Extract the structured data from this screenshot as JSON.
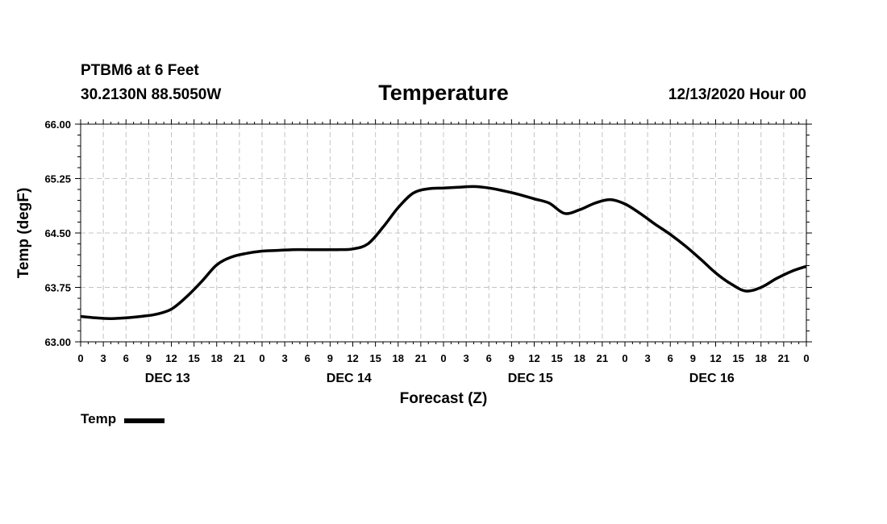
{
  "header": {
    "station": "PTBM6 at 6 Feet",
    "coords": "30.2130N 88.5050W",
    "title": "Temperature",
    "run_time": "12/13/2020 Hour 00"
  },
  "chart_data": {
    "type": "line",
    "title": "Temperature",
    "xlabel": "Forecast (Z)",
    "ylabel": "Temp (degF)",
    "ylim": [
      63.0,
      66.0
    ],
    "xlim": [
      0,
      96
    ],
    "yticks": [
      "63.00",
      "63.75",
      "64.50",
      "65.25",
      "66.00"
    ],
    "xtick_labels": [
      "0",
      "3",
      "6",
      "9",
      "12",
      "15",
      "18",
      "21",
      "0",
      "3",
      "6",
      "9",
      "12",
      "15",
      "18",
      "21",
      "0",
      "3",
      "6",
      "9",
      "12",
      "15",
      "18",
      "21",
      "0",
      "3",
      "6",
      "9",
      "12",
      "15",
      "18",
      "21",
      "0"
    ],
    "day_labels": [
      "DEC 13",
      "DEC 14",
      "DEC 15",
      "DEC 16"
    ],
    "grid": true,
    "legend": "bottom-left",
    "series": [
      {
        "name": "Temp",
        "color": "#000000",
        "x": [
          0,
          2,
          4,
          6,
          8,
          10,
          12,
          14,
          16,
          18,
          20,
          22,
          24,
          26,
          28,
          30,
          32,
          34,
          36,
          38,
          40,
          42,
          44,
          46,
          48,
          50,
          52,
          54,
          56,
          58,
          60,
          62,
          64,
          66,
          68,
          70,
          72,
          74,
          76,
          78,
          80,
          82,
          84,
          86,
          88,
          90,
          92,
          94,
          96
        ],
        "y": [
          63.35,
          63.33,
          63.32,
          63.33,
          63.35,
          63.38,
          63.45,
          63.62,
          63.83,
          64.06,
          64.17,
          64.22,
          64.25,
          64.26,
          64.27,
          64.27,
          64.27,
          64.27,
          64.28,
          64.35,
          64.58,
          64.85,
          65.05,
          65.11,
          65.12,
          65.13,
          65.14,
          65.12,
          65.08,
          65.03,
          64.97,
          64.91,
          64.77,
          64.82,
          64.91,
          64.96,
          64.9,
          64.77,
          64.62,
          64.48,
          64.32,
          64.14,
          63.95,
          63.8,
          63.7,
          63.75,
          63.87,
          63.97,
          64.04
        ]
      }
    ]
  }
}
